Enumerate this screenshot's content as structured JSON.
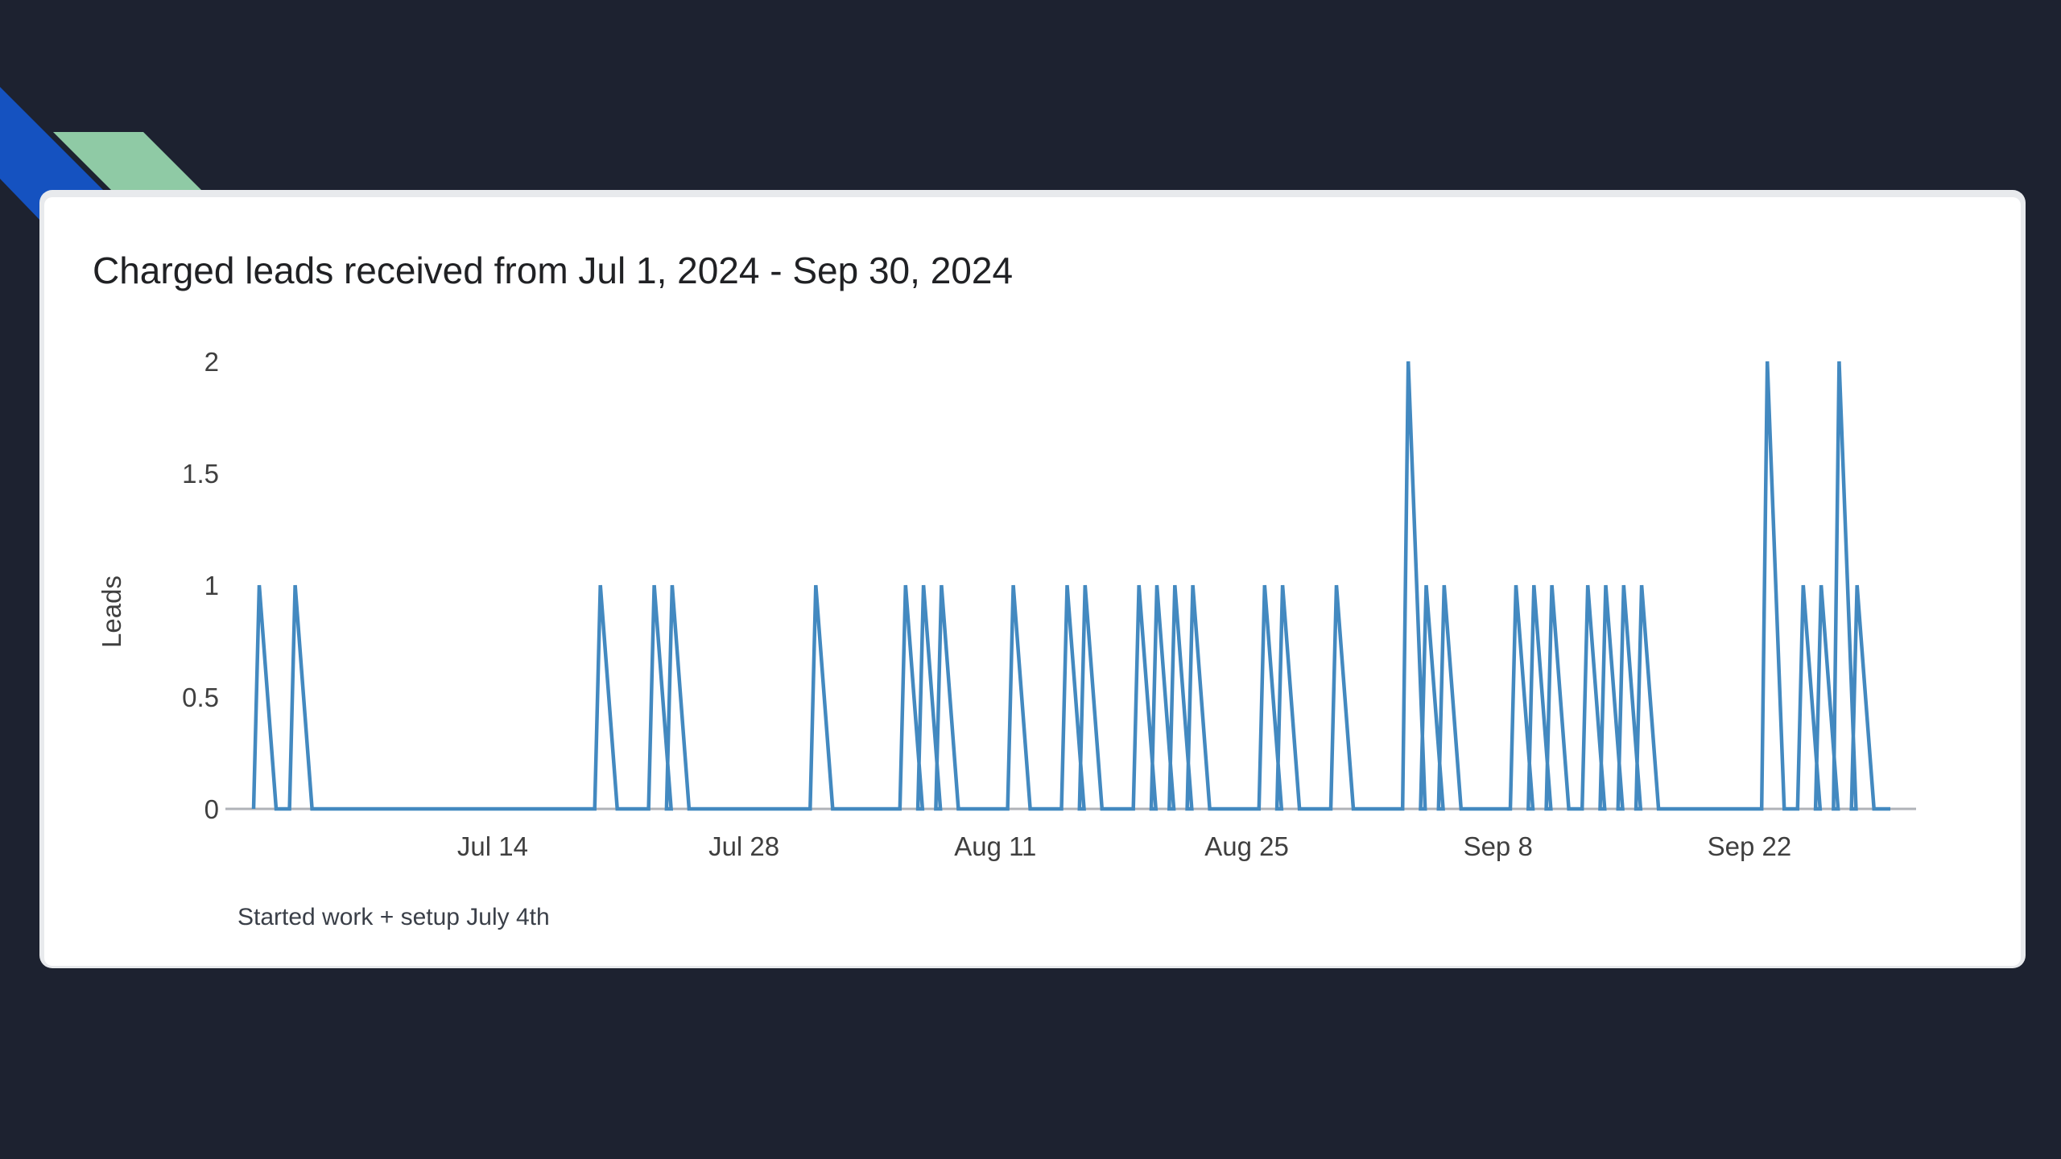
{
  "window": {
    "background_color": "#1d2230"
  },
  "decorations": {
    "blue_ribbon_color": "#1552c0",
    "green_ribbon_color": "#8fcaa5"
  },
  "card": {
    "background_color": "#ffffff"
  },
  "chart_data": {
    "type": "line",
    "title": "Charged leads received from Jul 1, 2024 - Sep 30, 2024",
    "xlabel": "",
    "ylabel": "Leads",
    "x_start": "Jul 1, 2024",
    "x_end": "Sep 30, 2024",
    "ylim": [
      0,
      2
    ],
    "grid": false,
    "legend_position": "none",
    "line_color": "#4389c0",
    "axis_color": "#b0b3b8",
    "label_color": "#3f3f3f",
    "y_ticks": [
      "0",
      "0.5",
      "1",
      "1.5",
      "2"
    ],
    "x_ticks": [
      {
        "label": "Jul 14",
        "day_index": 13
      },
      {
        "label": "Jul 28",
        "day_index": 27
      },
      {
        "label": "Aug 11",
        "day_index": 41
      },
      {
        "label": "Aug 25",
        "day_index": 55
      },
      {
        "label": "Sep 8",
        "day_index": 69
      },
      {
        "label": "Sep 22",
        "day_index": 83
      }
    ],
    "default_value": 0,
    "spikes": [
      {
        "date": "Jul 1",
        "day_index": 0,
        "value": 1
      },
      {
        "date": "Jul 3",
        "day_index": 2,
        "value": 1
      },
      {
        "date": "Jul 20",
        "day_index": 19,
        "value": 1
      },
      {
        "date": "Jul 23",
        "day_index": 22,
        "value": 1
      },
      {
        "date": "Jul 24",
        "day_index": 23,
        "value": 1
      },
      {
        "date": "Aug 1",
        "day_index": 31,
        "value": 1
      },
      {
        "date": "Aug 6",
        "day_index": 36,
        "value": 1
      },
      {
        "date": "Aug 7",
        "day_index": 37,
        "value": 1
      },
      {
        "date": "Aug 8",
        "day_index": 38,
        "value": 1
      },
      {
        "date": "Aug 12",
        "day_index": 42,
        "value": 1
      },
      {
        "date": "Aug 15",
        "day_index": 45,
        "value": 1
      },
      {
        "date": "Aug 16",
        "day_index": 46,
        "value": 1
      },
      {
        "date": "Aug 19",
        "day_index": 49,
        "value": 1
      },
      {
        "date": "Aug 20",
        "day_index": 50,
        "value": 1
      },
      {
        "date": "Aug 21",
        "day_index": 51,
        "value": 1
      },
      {
        "date": "Aug 22",
        "day_index": 52,
        "value": 1
      },
      {
        "date": "Aug 26",
        "day_index": 56,
        "value": 1
      },
      {
        "date": "Aug 27",
        "day_index": 57,
        "value": 1
      },
      {
        "date": "Aug 30",
        "day_index": 60,
        "value": 1
      },
      {
        "date": "Sep 3",
        "day_index": 64,
        "value": 2
      },
      {
        "date": "Sep 4",
        "day_index": 65,
        "value": 1
      },
      {
        "date": "Sep 5",
        "day_index": 66,
        "value": 1
      },
      {
        "date": "Sep 9",
        "day_index": 70,
        "value": 1
      },
      {
        "date": "Sep 10",
        "day_index": 71,
        "value": 1
      },
      {
        "date": "Sep 11",
        "day_index": 72,
        "value": 1
      },
      {
        "date": "Sep 13",
        "day_index": 74,
        "value": 1
      },
      {
        "date": "Sep 14",
        "day_index": 75,
        "value": 1
      },
      {
        "date": "Sep 15",
        "day_index": 76,
        "value": 1
      },
      {
        "date": "Sep 16",
        "day_index": 77,
        "value": 1
      },
      {
        "date": "Sep 23",
        "day_index": 84,
        "value": 2
      },
      {
        "date": "Sep 25",
        "day_index": 86,
        "value": 1
      },
      {
        "date": "Sep 26",
        "day_index": 87,
        "value": 1
      },
      {
        "date": "Sep 27",
        "day_index": 88,
        "value": 2
      },
      {
        "date": "Sep 28",
        "day_index": 89,
        "value": 1
      }
    ]
  },
  "annotation": {
    "text": "Started work + setup July 4th"
  }
}
